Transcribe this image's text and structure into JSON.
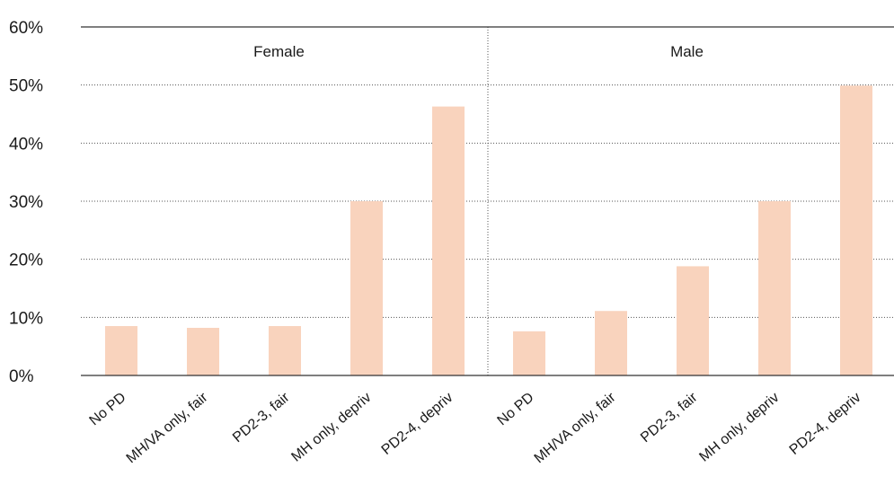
{
  "chart_data": {
    "type": "bar",
    "panels": [
      {
        "title": "Female",
        "categories": [
          "No PD",
          "MH/VA only, fair",
          "PD2-3, fair",
          "MH only, depriv",
          "PD2-4, depriv"
        ],
        "values": [
          8.5,
          8.2,
          8.5,
          30.0,
          46.3
        ]
      },
      {
        "title": "Male",
        "categories": [
          "No PD",
          "MH/VA only, fair",
          "PD2-3, fair",
          "MH only, depriv",
          "PD2-4, depriv"
        ],
        "values": [
          7.6,
          11.1,
          18.8,
          30.0,
          49.9
        ]
      }
    ],
    "ylim": [
      0,
      60
    ],
    "yticks": [
      0,
      10,
      20,
      30,
      40,
      50,
      60
    ],
    "ytick_labels": [
      "0%",
      "10%",
      "20%",
      "30%",
      "40%",
      "50%",
      "60%"
    ],
    "grid": true,
    "bar_color": "#f9d3bd",
    "axis_color": "#333333",
    "grid_color": "#555555"
  }
}
